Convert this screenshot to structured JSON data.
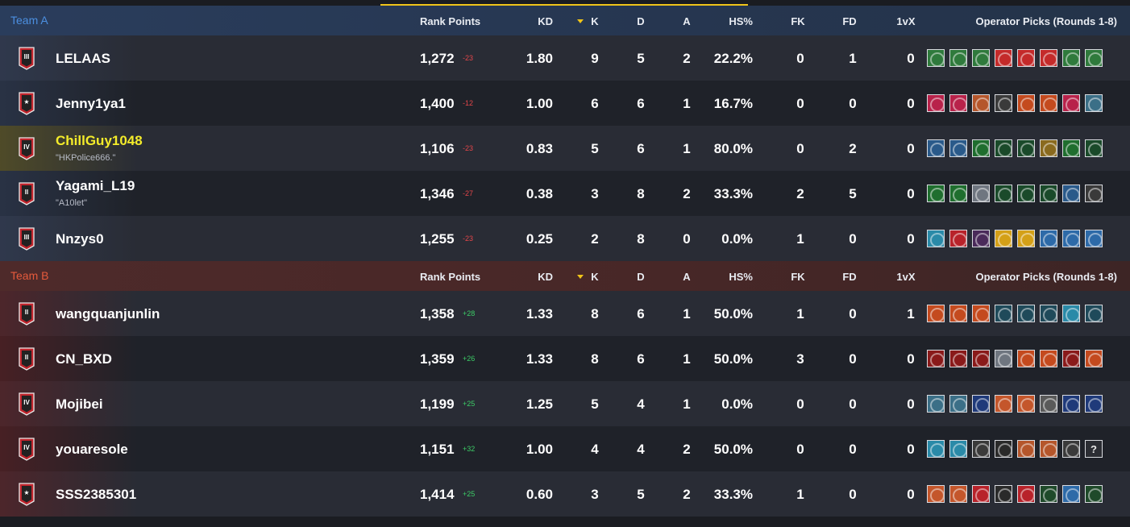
{
  "columns": {
    "rank_points": "Rank Points",
    "kd": "KD",
    "k": "K",
    "d": "D",
    "a": "A",
    "hs": "HS%",
    "fk": "FK",
    "fd": "FD",
    "onevx": "1vX",
    "ops": "Operator Picks (Rounds 1-8)"
  },
  "colors": {
    "team_a_label": "#4c8fe0",
    "team_b_label": "#e55a3c",
    "sort_accent": "#f0c419",
    "delta_negative": "#e4464a",
    "delta_positive": "#3ccd66",
    "highlight_name": "#f4ec2a"
  },
  "team_a": {
    "name": "Team A",
    "players": [
      {
        "name": "LELAAS",
        "alias": "",
        "rank": "III",
        "rank_points": "1,272",
        "delta": "-23",
        "kd": "1.80",
        "k": "9",
        "d": "5",
        "a": "2",
        "hs": "22.2%",
        "fk": "0",
        "fd": "1",
        "onevx": "0",
        "highlighted": false,
        "ops": [
          {
            "icon": "operator-icon",
            "color": "#2f7a3c"
          },
          {
            "icon": "operator-icon",
            "color": "#2f7a3c"
          },
          {
            "icon": "operator-icon",
            "color": "#2f7a3c"
          },
          {
            "icon": "operator-icon",
            "color": "#c42a2a"
          },
          {
            "icon": "operator-icon",
            "color": "#c42a2a"
          },
          {
            "icon": "operator-icon",
            "color": "#c42a2a"
          },
          {
            "icon": "operator-icon",
            "color": "#2f7a3c"
          },
          {
            "icon": "operator-icon",
            "color": "#2f7a3c"
          }
        ]
      },
      {
        "name": "Jenny1ya1",
        "alias": "",
        "rank": "★",
        "rank_points": "1,400",
        "delta": "-12",
        "kd": "1.00",
        "k": "6",
        "d": "6",
        "a": "1",
        "hs": "16.7%",
        "fk": "0",
        "fd": "0",
        "onevx": "0",
        "highlighted": false,
        "ops": [
          {
            "icon": "operator-icon",
            "color": "#b8224a"
          },
          {
            "icon": "operator-icon",
            "color": "#b8224a"
          },
          {
            "icon": "operator-icon",
            "color": "#b5562b"
          },
          {
            "icon": "operator-icon",
            "color": "#3a3a3a"
          },
          {
            "icon": "operator-icon",
            "color": "#c44a1e"
          },
          {
            "icon": "operator-icon",
            "color": "#c44a1e"
          },
          {
            "icon": "operator-icon",
            "color": "#b8224a"
          },
          {
            "icon": "operator-icon",
            "color": "#3b6f87"
          }
        ]
      },
      {
        "name": "ChillGuy1048",
        "alias": "\"HKPolice666.\"",
        "rank": "IV",
        "rank_points": "1,106",
        "delta": "-23",
        "kd": "0.83",
        "k": "5",
        "d": "6",
        "a": "1",
        "hs": "80.0%",
        "fk": "0",
        "fd": "2",
        "onevx": "0",
        "highlighted": true,
        "ops": [
          {
            "icon": "operator-icon",
            "color": "#2a5a8a"
          },
          {
            "icon": "operator-icon",
            "color": "#2a5a8a"
          },
          {
            "icon": "operator-icon",
            "color": "#1f6e2e"
          },
          {
            "icon": "operator-icon",
            "color": "#1a4a2a"
          },
          {
            "icon": "operator-icon",
            "color": "#1a4a2a"
          },
          {
            "icon": "operator-icon",
            "color": "#8a6a1e"
          },
          {
            "icon": "operator-icon",
            "color": "#1f6e2e"
          },
          {
            "icon": "operator-icon",
            "color": "#1a4a2a"
          }
        ]
      },
      {
        "name": "Yagami_L19",
        "alias": "\"A10let\"",
        "rank": "II",
        "rank_points": "1,346",
        "delta": "-27",
        "kd": "0.38",
        "k": "3",
        "d": "8",
        "a": "2",
        "hs": "33.3%",
        "fk": "2",
        "fd": "5",
        "onevx": "0",
        "highlighted": false,
        "ops": [
          {
            "icon": "operator-icon",
            "color": "#1f6e2e"
          },
          {
            "icon": "operator-icon",
            "color": "#1f6e2e"
          },
          {
            "icon": "operator-icon",
            "color": "#6f7680"
          },
          {
            "icon": "operator-icon",
            "color": "#1a4a2a"
          },
          {
            "icon": "operator-icon",
            "color": "#1a4a2a"
          },
          {
            "icon": "operator-icon",
            "color": "#1a4a2a"
          },
          {
            "icon": "operator-icon",
            "color": "#2a5a8a"
          },
          {
            "icon": "operator-icon",
            "color": "#3a3a3a"
          }
        ]
      },
      {
        "name": "Nnzys0",
        "alias": "",
        "rank": "III",
        "rank_points": "1,255",
        "delta": "-23",
        "kd": "0.25",
        "k": "2",
        "d": "8",
        "a": "0",
        "hs": "0.0%",
        "fk": "1",
        "fd": "0",
        "onevx": "0",
        "highlighted": false,
        "ops": [
          {
            "icon": "operator-icon",
            "color": "#2a8aa8"
          },
          {
            "icon": "operator-icon",
            "color": "#b8222a"
          },
          {
            "icon": "operator-icon",
            "color": "#4a2a5a"
          },
          {
            "icon": "operator-icon",
            "color": "#d4a017"
          },
          {
            "icon": "operator-icon",
            "color": "#d4a017"
          },
          {
            "icon": "operator-icon",
            "color": "#2d6aa8"
          },
          {
            "icon": "operator-icon",
            "color": "#2d6aa8"
          },
          {
            "icon": "operator-icon",
            "color": "#2d6aa8"
          }
        ]
      }
    ]
  },
  "team_b": {
    "name": "Team B",
    "players": [
      {
        "name": "wangquanjunlin",
        "alias": "",
        "rank": "II",
        "rank_points": "1,358",
        "delta": "+28",
        "kd": "1.33",
        "k": "8",
        "d": "6",
        "a": "1",
        "hs": "50.0%",
        "fk": "1",
        "fd": "0",
        "onevx": "1",
        "highlighted": false,
        "ops": [
          {
            "icon": "operator-icon",
            "color": "#c44a1e"
          },
          {
            "icon": "operator-icon",
            "color": "#c44a1e"
          },
          {
            "icon": "operator-icon",
            "color": "#c44a1e"
          },
          {
            "icon": "operator-icon",
            "color": "#1f4a5a"
          },
          {
            "icon": "operator-icon",
            "color": "#1f4a5a"
          },
          {
            "icon": "operator-icon",
            "color": "#1f4a5a"
          },
          {
            "icon": "operator-icon",
            "color": "#2a8aa8"
          },
          {
            "icon": "operator-icon",
            "color": "#1f4a5a"
          }
        ]
      },
      {
        "name": "CN_BXD",
        "alias": "",
        "rank": "II",
        "rank_points": "1,359",
        "delta": "+26",
        "kd": "1.33",
        "k": "8",
        "d": "6",
        "a": "1",
        "hs": "50.0%",
        "fk": "3",
        "fd": "0",
        "onevx": "0",
        "highlighted": false,
        "ops": [
          {
            "icon": "operator-icon",
            "color": "#8a1a1a"
          },
          {
            "icon": "operator-icon",
            "color": "#8a1a1a"
          },
          {
            "icon": "operator-icon",
            "color": "#8a1a1a"
          },
          {
            "icon": "operator-icon",
            "color": "#6f7680"
          },
          {
            "icon": "operator-icon",
            "color": "#c44a1e"
          },
          {
            "icon": "operator-icon",
            "color": "#c44a1e"
          },
          {
            "icon": "operator-icon",
            "color": "#8a1a1a"
          },
          {
            "icon": "operator-icon",
            "color": "#c44a1e"
          }
        ]
      },
      {
        "name": "Mojibei",
        "alias": "",
        "rank": "IV",
        "rank_points": "1,199",
        "delta": "+25",
        "kd": "1.25",
        "k": "5",
        "d": "4",
        "a": "1",
        "hs": "0.0%",
        "fk": "0",
        "fd": "0",
        "onevx": "0",
        "highlighted": false,
        "ops": [
          {
            "icon": "operator-icon",
            "color": "#3b6f87"
          },
          {
            "icon": "operator-icon",
            "color": "#3b6f87"
          },
          {
            "icon": "operator-icon",
            "color": "#1f3a7a"
          },
          {
            "icon": "operator-icon",
            "color": "#c4562b"
          },
          {
            "icon": "operator-icon",
            "color": "#c4562b"
          },
          {
            "icon": "operator-icon",
            "color": "#5a5a5a"
          },
          {
            "icon": "operator-icon",
            "color": "#1f3a7a"
          },
          {
            "icon": "operator-icon",
            "color": "#1f3a7a"
          }
        ]
      },
      {
        "name": "youaresole",
        "alias": "",
        "rank": "IV",
        "rank_points": "1,151",
        "delta": "+32",
        "kd": "1.00",
        "k": "4",
        "d": "4",
        "a": "2",
        "hs": "50.0%",
        "fk": "0",
        "fd": "0",
        "onevx": "0",
        "highlighted": false,
        "ops": [
          {
            "icon": "operator-icon",
            "color": "#2a8aa8"
          },
          {
            "icon": "operator-icon",
            "color": "#2a8aa8"
          },
          {
            "icon": "operator-icon",
            "color": "#3a3a3a"
          },
          {
            "icon": "operator-icon",
            "color": "#2a2a2a"
          },
          {
            "icon": "operator-icon",
            "color": "#b5562b"
          },
          {
            "icon": "operator-icon",
            "color": "#b5562b"
          },
          {
            "icon": "operator-icon",
            "color": "#3a3a3a"
          },
          {
            "icon": "unknown-operator-icon",
            "color": "#2b2d33",
            "label": "?"
          }
        ]
      },
      {
        "name": "SSS2385301",
        "alias": "",
        "rank": "★",
        "rank_points": "1,414",
        "delta": "+25",
        "kd": "0.60",
        "k": "3",
        "d": "5",
        "a": "2",
        "hs": "33.3%",
        "fk": "1",
        "fd": "0",
        "onevx": "0",
        "highlighted": false,
        "ops": [
          {
            "icon": "operator-icon",
            "color": "#c4562b"
          },
          {
            "icon": "operator-icon",
            "color": "#c4562b"
          },
          {
            "icon": "operator-icon",
            "color": "#b8222a"
          },
          {
            "icon": "operator-icon",
            "color": "#2a2a2a"
          },
          {
            "icon": "operator-icon",
            "color": "#b8222a"
          },
          {
            "icon": "operator-icon",
            "color": "#1f4a2a"
          },
          {
            "icon": "operator-icon",
            "color": "#2d6aa8"
          },
          {
            "icon": "operator-icon",
            "color": "#1f4a2a"
          }
        ]
      }
    ]
  }
}
